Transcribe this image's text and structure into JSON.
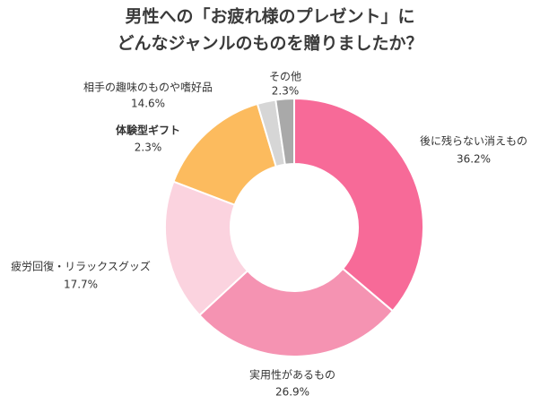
{
  "chart_data": {
    "type": "donut",
    "title": [
      "男性への「お疲れ様のプレゼント」に",
      "どんなジャンルのものを贈りましたか？"
    ],
    "categories": [
      "後に残らない消えもの",
      "実用性があるもの",
      "疲労回復・リラックスグッズ",
      "相手の趣味のものや嗜好品",
      "体験型ギフト",
      "その他"
    ],
    "values": [
      36.2,
      26.9,
      17.7,
      14.6,
      2.3,
      2.3
    ],
    "value_labels": [
      "36.2%",
      "26.9%",
      "17.7%",
      "14.6%",
      "2.3%",
      "2.3%"
    ],
    "colors": [
      "#f76a98",
      "#f593b2",
      "#fbd3df",
      "#fcbb5e",
      "#d6d6d6",
      "#a9a9a9"
    ]
  }
}
